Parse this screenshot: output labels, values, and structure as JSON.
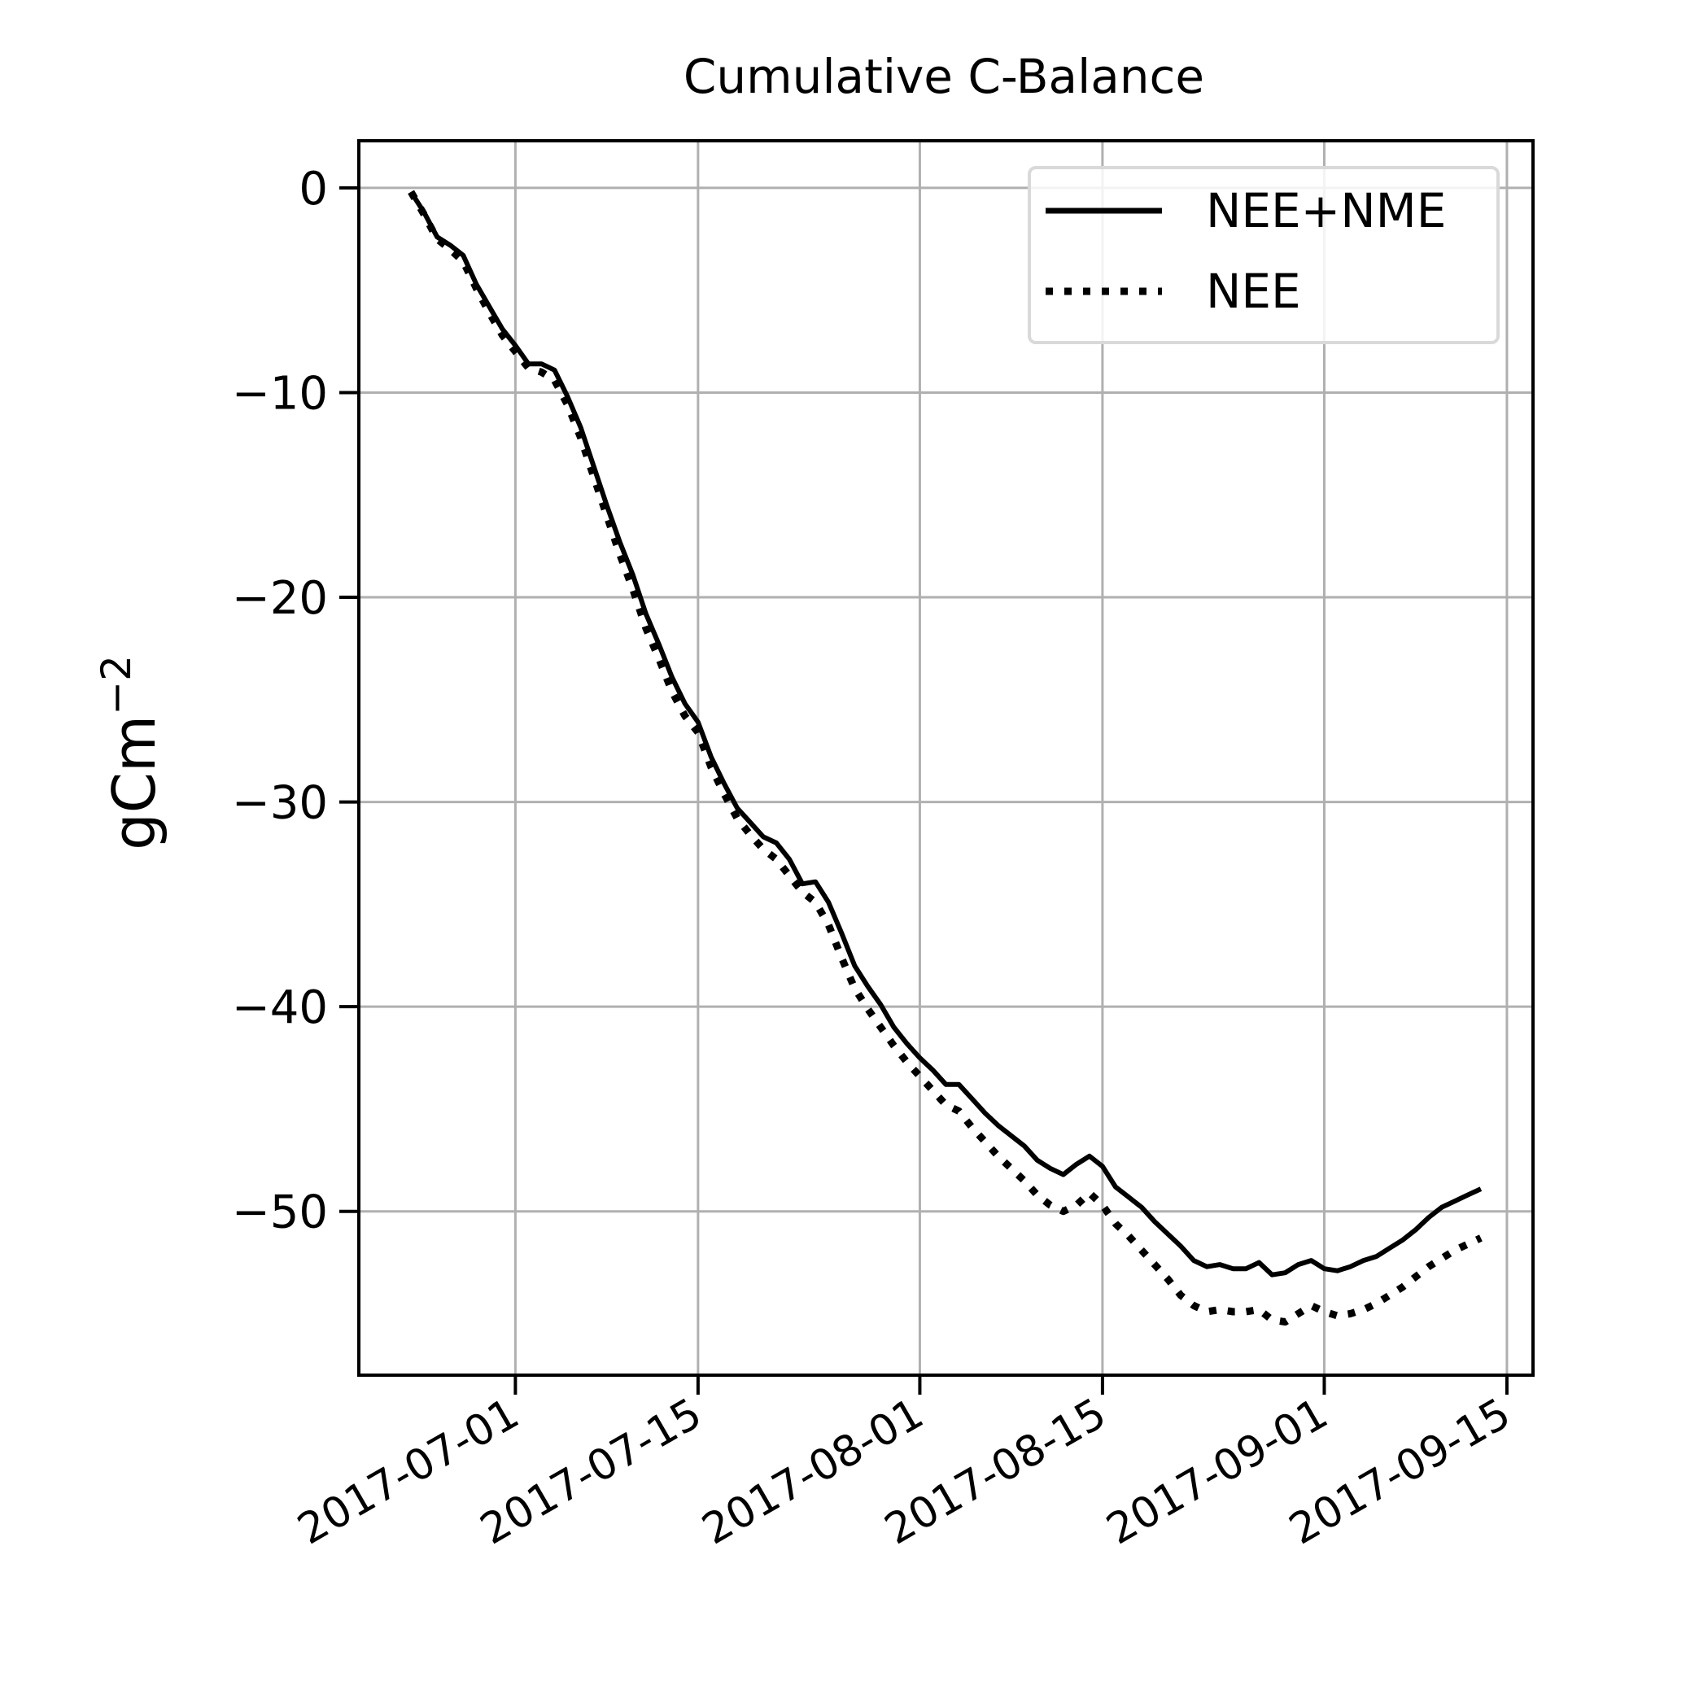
{
  "chart_data": {
    "type": "line",
    "title": "Cumulative C-Balance",
    "xlabel": "",
    "ylabel": "gCm",
    "ylabel_exponent": "−2",
    "xlim": [
      "2017-06-19",
      "2017-09-17"
    ],
    "ylim": [
      -58,
      2.3
    ],
    "grid": true,
    "legend_position": "top-right",
    "x_ticks": [
      "2017-07-01",
      "2017-07-15",
      "2017-08-01",
      "2017-08-15",
      "2017-09-01",
      "2017-09-15"
    ],
    "y_ticks": [
      0,
      -10,
      -20,
      -30,
      -40,
      -50
    ],
    "y_tick_labels": [
      "0",
      "−10",
      "−20",
      "−30",
      "−40",
      "−50"
    ],
    "series": [
      {
        "name": "NEE+NME",
        "style": "solid",
        "color": "#000000",
        "points": [
          [
            "2017-06-23",
            -0.2
          ],
          [
            "2017-06-24",
            -1.2
          ],
          [
            "2017-06-25",
            -2.4
          ],
          [
            "2017-06-26",
            -2.8
          ],
          [
            "2017-06-27",
            -3.3
          ],
          [
            "2017-06-28",
            -4.7
          ],
          [
            "2017-06-29",
            -5.8
          ],
          [
            "2017-06-30",
            -6.9
          ],
          [
            "2017-07-01",
            -7.7
          ],
          [
            "2017-07-02",
            -8.6
          ],
          [
            "2017-07-03",
            -8.6
          ],
          [
            "2017-07-04",
            -8.9
          ],
          [
            "2017-07-05",
            -10.2
          ],
          [
            "2017-07-06",
            -11.7
          ],
          [
            "2017-07-07",
            -13.6
          ],
          [
            "2017-07-08",
            -15.5
          ],
          [
            "2017-07-09",
            -17.3
          ],
          [
            "2017-07-10",
            -18.9
          ],
          [
            "2017-07-11",
            -20.8
          ],
          [
            "2017-07-12",
            -22.3
          ],
          [
            "2017-07-13",
            -23.9
          ],
          [
            "2017-07-14",
            -25.2
          ],
          [
            "2017-07-15",
            -26.1
          ],
          [
            "2017-07-16",
            -27.8
          ],
          [
            "2017-07-17",
            -29.1
          ],
          [
            "2017-07-18",
            -30.3
          ],
          [
            "2017-07-19",
            -31.0
          ],
          [
            "2017-07-20",
            -31.7
          ],
          [
            "2017-07-21",
            -32.0
          ],
          [
            "2017-07-22",
            -32.8
          ],
          [
            "2017-07-23",
            -34.0
          ],
          [
            "2017-07-24",
            -33.9
          ],
          [
            "2017-07-25",
            -34.9
          ],
          [
            "2017-07-26",
            -36.4
          ],
          [
            "2017-07-27",
            -38.0
          ],
          [
            "2017-07-28",
            -39.0
          ],
          [
            "2017-07-29",
            -39.9
          ],
          [
            "2017-07-30",
            -41.0
          ],
          [
            "2017-07-31",
            -41.8
          ],
          [
            "2017-08-01",
            -42.5
          ],
          [
            "2017-08-02",
            -43.1
          ],
          [
            "2017-08-03",
            -43.8
          ],
          [
            "2017-08-04",
            -43.8
          ],
          [
            "2017-08-05",
            -44.5
          ],
          [
            "2017-08-06",
            -45.2
          ],
          [
            "2017-08-07",
            -45.8
          ],
          [
            "2017-08-08",
            -46.3
          ],
          [
            "2017-08-09",
            -46.8
          ],
          [
            "2017-08-10",
            -47.5
          ],
          [
            "2017-08-11",
            -47.9
          ],
          [
            "2017-08-12",
            -48.2
          ],
          [
            "2017-08-13",
            -47.7
          ],
          [
            "2017-08-14",
            -47.3
          ],
          [
            "2017-08-15",
            -47.8
          ],
          [
            "2017-08-16",
            -48.8
          ],
          [
            "2017-08-17",
            -49.3
          ],
          [
            "2017-08-18",
            -49.8
          ],
          [
            "2017-08-19",
            -50.5
          ],
          [
            "2017-08-20",
            -51.1
          ],
          [
            "2017-08-21",
            -51.7
          ],
          [
            "2017-08-22",
            -52.4
          ],
          [
            "2017-08-23",
            -52.7
          ],
          [
            "2017-08-24",
            -52.6
          ],
          [
            "2017-08-25",
            -52.8
          ],
          [
            "2017-08-26",
            -52.8
          ],
          [
            "2017-08-27",
            -52.5
          ],
          [
            "2017-08-28",
            -53.1
          ],
          [
            "2017-08-29",
            -53.0
          ],
          [
            "2017-08-30",
            -52.6
          ],
          [
            "2017-08-31",
            -52.4
          ],
          [
            "2017-09-01",
            -52.8
          ],
          [
            "2017-09-02",
            -52.9
          ],
          [
            "2017-09-03",
            -52.7
          ],
          [
            "2017-09-04",
            -52.4
          ],
          [
            "2017-09-05",
            -52.2
          ],
          [
            "2017-09-06",
            -51.8
          ],
          [
            "2017-09-07",
            -51.4
          ],
          [
            "2017-09-08",
            -50.9
          ],
          [
            "2017-09-09",
            -50.3
          ],
          [
            "2017-09-10",
            -49.8
          ],
          [
            "2017-09-11",
            -49.5
          ],
          [
            "2017-09-12",
            -49.2
          ],
          [
            "2017-09-13",
            -48.9
          ]
        ]
      },
      {
        "name": "NEE",
        "style": "dotted",
        "color": "#000000",
        "points": [
          [
            "2017-06-23",
            -0.2
          ],
          [
            "2017-06-24",
            -1.3
          ],
          [
            "2017-06-25",
            -2.5
          ],
          [
            "2017-06-26",
            -3.0
          ],
          [
            "2017-06-27",
            -3.6
          ],
          [
            "2017-06-28",
            -4.9
          ],
          [
            "2017-06-29",
            -6.1
          ],
          [
            "2017-06-30",
            -7.2
          ],
          [
            "2017-07-01",
            -8.0
          ],
          [
            "2017-07-02",
            -8.8
          ],
          [
            "2017-07-03",
            -9.0
          ],
          [
            "2017-07-04",
            -9.4
          ],
          [
            "2017-07-05",
            -10.6
          ],
          [
            "2017-07-06",
            -12.2
          ],
          [
            "2017-07-07",
            -14.1
          ],
          [
            "2017-07-08",
            -16.0
          ],
          [
            "2017-07-09",
            -17.9
          ],
          [
            "2017-07-10",
            -19.6
          ],
          [
            "2017-07-11",
            -21.5
          ],
          [
            "2017-07-12",
            -23.0
          ],
          [
            "2017-07-13",
            -24.6
          ],
          [
            "2017-07-14",
            -25.8
          ],
          [
            "2017-07-15",
            -26.6
          ],
          [
            "2017-07-16",
            -28.3
          ],
          [
            "2017-07-17",
            -29.6
          ],
          [
            "2017-07-18",
            -30.8
          ],
          [
            "2017-07-19",
            -31.6
          ],
          [
            "2017-07-20",
            -32.3
          ],
          [
            "2017-07-21",
            -32.8
          ],
          [
            "2017-07-22",
            -33.6
          ],
          [
            "2017-07-23",
            -34.4
          ],
          [
            "2017-07-24",
            -34.9
          ],
          [
            "2017-07-25",
            -36.0
          ],
          [
            "2017-07-26",
            -37.6
          ],
          [
            "2017-07-27",
            -39.1
          ],
          [
            "2017-07-28",
            -40.1
          ],
          [
            "2017-07-29",
            -41.0
          ],
          [
            "2017-07-30",
            -41.9
          ],
          [
            "2017-07-31",
            -42.7
          ],
          [
            "2017-08-01",
            -43.4
          ],
          [
            "2017-08-02",
            -44.1
          ],
          [
            "2017-08-03",
            -44.8
          ],
          [
            "2017-08-04",
            -45.1
          ],
          [
            "2017-08-05",
            -45.9
          ],
          [
            "2017-08-06",
            -46.6
          ],
          [
            "2017-08-07",
            -47.3
          ],
          [
            "2017-08-08",
            -47.9
          ],
          [
            "2017-08-09",
            -48.5
          ],
          [
            "2017-08-10",
            -49.2
          ],
          [
            "2017-08-11",
            -49.7
          ],
          [
            "2017-08-12",
            -50.0
          ],
          [
            "2017-08-13",
            -49.7
          ],
          [
            "2017-08-14",
            -49.1
          ],
          [
            "2017-08-15",
            -49.7
          ],
          [
            "2017-08-16",
            -50.6
          ],
          [
            "2017-08-17",
            -51.2
          ],
          [
            "2017-08-18",
            -51.9
          ],
          [
            "2017-08-19",
            -52.6
          ],
          [
            "2017-08-20",
            -53.3
          ],
          [
            "2017-08-21",
            -54.1
          ],
          [
            "2017-08-22",
            -54.6
          ],
          [
            "2017-08-23",
            -54.9
          ],
          [
            "2017-08-24",
            -54.8
          ],
          [
            "2017-08-25",
            -54.9
          ],
          [
            "2017-08-26",
            -54.9
          ],
          [
            "2017-08-27",
            -54.8
          ],
          [
            "2017-08-28",
            -55.3
          ],
          [
            "2017-08-29",
            -55.4
          ],
          [
            "2017-08-30",
            -55.0
          ],
          [
            "2017-08-31",
            -54.6
          ],
          [
            "2017-09-01",
            -54.9
          ],
          [
            "2017-09-02",
            -55.1
          ],
          [
            "2017-09-03",
            -55.0
          ],
          [
            "2017-09-04",
            -54.8
          ],
          [
            "2017-09-05",
            -54.5
          ],
          [
            "2017-09-06",
            -54.1
          ],
          [
            "2017-09-07",
            -53.7
          ],
          [
            "2017-09-08",
            -53.2
          ],
          [
            "2017-09-09",
            -52.7
          ],
          [
            "2017-09-10",
            -52.3
          ],
          [
            "2017-09-11",
            -51.9
          ],
          [
            "2017-09-12",
            -51.6
          ],
          [
            "2017-09-13",
            -51.3
          ]
        ]
      }
    ]
  }
}
